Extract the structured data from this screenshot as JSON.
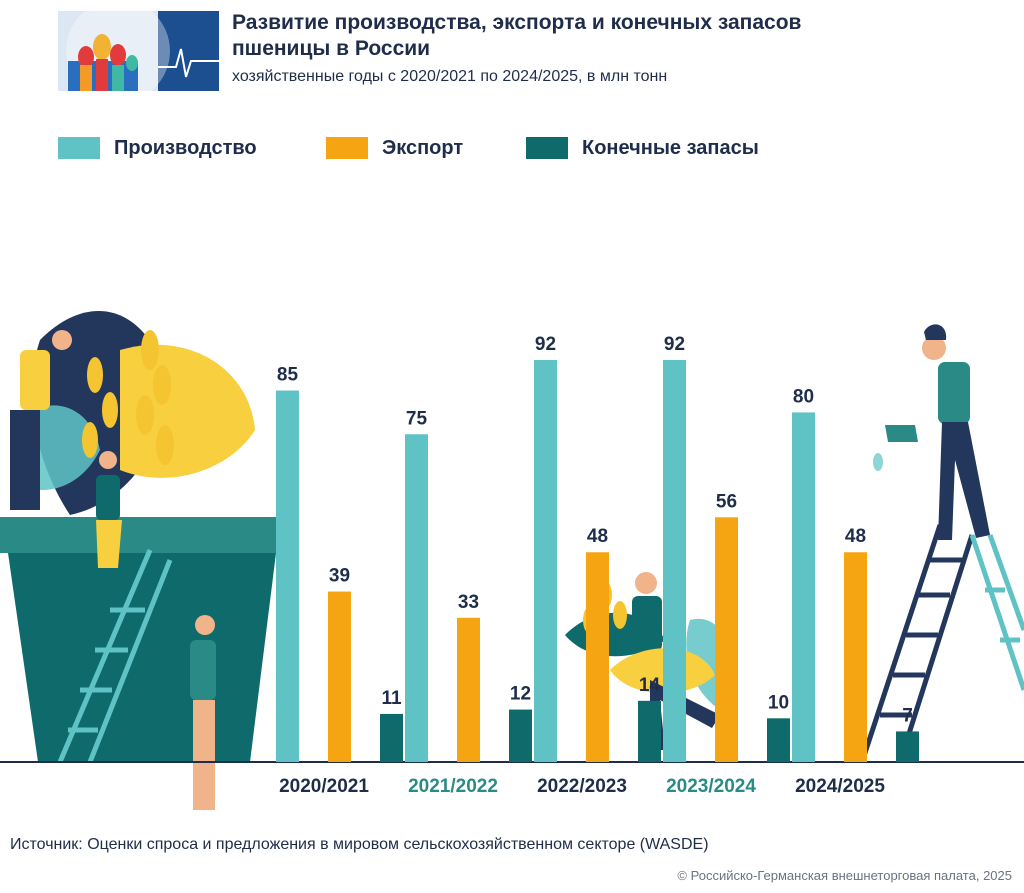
{
  "header": {
    "title": "Развитие производства, экспорта и конечных запасов пшеницы в России",
    "subtitle": "хозяйственные годы с 2020/2021 по 2024/2025, в млн тонн"
  },
  "colors": {
    "production": "#5fc3c6",
    "export": "#f5a511",
    "stocks": "#0f6b6b",
    "axis": "#1f2d4a",
    "highlight_tick": "#2a8a86"
  },
  "chart_data": {
    "type": "bar",
    "categories": [
      "2020/2021",
      "2021/2022",
      "2022/2023",
      "2023/2024",
      "2024/2025"
    ],
    "series": [
      {
        "name": "Производство",
        "values": [
          85,
          75,
          92,
          92,
          80
        ]
      },
      {
        "name": "Экспорт",
        "values": [
          39,
          33,
          48,
          56,
          48
        ]
      },
      {
        "name": "Конечные запасы",
        "values": [
          11,
          12,
          14,
          10,
          7
        ]
      }
    ],
    "ylim": [
      0,
      100
    ],
    "legend_position": "top-left",
    "grid": false,
    "highlighted_categories": [
      "2021/2022",
      "2023/2024"
    ]
  },
  "footer": {
    "source": "Источник: Оценки спроса и предложения в мировом сельскохозяйственном секторе (WASDE)",
    "copyright": "© Российско-Германская внешнеторговая палата, 2025"
  }
}
